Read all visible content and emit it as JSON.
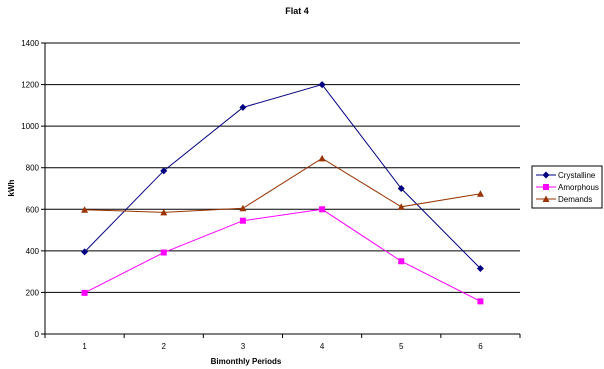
{
  "chart_data": {
    "type": "line",
    "title": "Flat 4",
    "xlabel": "Bimonthly Periods",
    "ylabel": "kWh",
    "categories": [
      "1",
      "2",
      "3",
      "4",
      "5",
      "6"
    ],
    "ylim": [
      0,
      1400
    ],
    "yticks": [
      0,
      200,
      400,
      600,
      800,
      1000,
      1200,
      1400
    ],
    "grid": "horizontal",
    "legend": "right",
    "series": [
      {
        "name": "Crystalline",
        "color": "#000080",
        "marker": "diamond",
        "values": [
          395,
          785,
          1090,
          1200,
          700,
          315
        ]
      },
      {
        "name": "Amorphous",
        "color": "#FF00FF",
        "marker": "square",
        "values": [
          198,
          392,
          545,
          600,
          350,
          157
        ]
      },
      {
        "name": "Demands",
        "color": "#993300",
        "marker": "triangle",
        "values": [
          598,
          585,
          605,
          845,
          612,
          675
        ]
      }
    ]
  }
}
